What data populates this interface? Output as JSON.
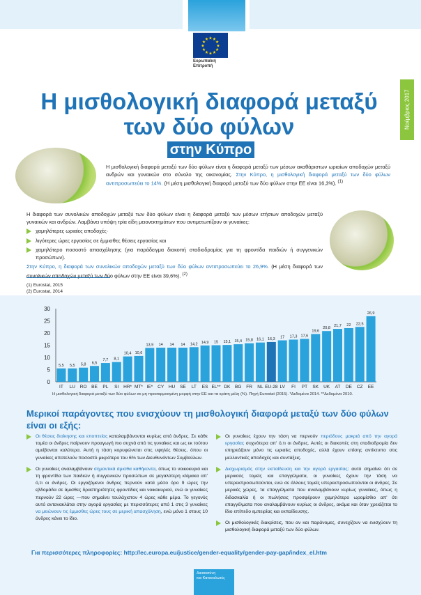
{
  "header": {
    "logo_line1": "Ευρωπαϊκή",
    "logo_line2": "Επιτροπή",
    "date_tab": "Νοέμβριος 2017"
  },
  "title": "Η μισθολογική διαφορά μεταξύ των δύο φύλων",
  "subtitle": "στην Κύπρο",
  "intro": {
    "text": "Η μισθολογική διαφορά μεταξύ των δύο φύλων είναι η διαφορά μεταξύ των μέσων ακαθάριστων ωριαίων αποδοχών μεταξύ ανδρών και γυναικών στο σύνολο της οικονομίας. ",
    "highlight": "Στην Κύπρο, η μισθολογική διαφορά μεταξύ των δύο φύλων αντιπροσωπεύει το 14%.",
    "tail": " (Η μέση μισθολογική διαφορά μεταξύ των δύο φύλων στην ΕΕ είναι 16,3%).",
    "ref": "(1)"
  },
  "total": {
    "text": "Η διαφορά των συνολικών αποδοχών μεταξύ των δύο φύλων είναι η διαφορά μεταξύ των μέσων ετήσιων αποδοχών μεταξύ γυναικών και ανδρών. Λαμβάνει υπόψη τρία είδη μειονεκτημάτων που αντιμετωπίζουν οι γυναίκες:",
    "bullets": [
      "χαμηλότερες ωριαίες αποδοχές·",
      "λιγότερες ώρες εργασίας σε έμμισθες θέσεις εργασίας και",
      "χαμηλότερο ποσοστό απασχόλησης (για παράδειγμα διακοπή σταδιοδρομίας για τη φροντίδα παιδιών ή συγγενικών προσώπων)."
    ],
    "highlight": "Στην Κύπρο, η διαφορά των συνολικών αποδοχών μεταξύ των δύο φύλων αντιπροσωπεύει το 26,9%.",
    "tail": " (Η μέση διαφορά των συνολικών αποδοχών μεταξύ των δύο φύλων στην ΕΕ είναι 39,6%).",
    "ref": "(2)"
  },
  "footnotes": [
    "(1)  Eurostat, 2015",
    "(2)  Eurostat, 2014"
  ],
  "chart_data": {
    "type": "bar",
    "categories": [
      "IT",
      "LU",
      "RO",
      "BE",
      "PL",
      "SI",
      "HR*",
      "MT*",
      "IE*",
      "CY",
      "HU",
      "SE",
      "LT",
      "ES",
      "EL**",
      "DK",
      "BG",
      "FR",
      "NL",
      "EU-28",
      "LV",
      "FI",
      "PT",
      "SK",
      "UK",
      "AT",
      "DE",
      "CZ",
      "EE"
    ],
    "values": [
      5.5,
      5.5,
      5.8,
      6.5,
      7.7,
      8.1,
      10.4,
      10.6,
      13.9,
      14,
      14,
      14,
      14.2,
      14.9,
      15,
      15.1,
      15.4,
      15.8,
      16.1,
      16.3,
      17,
      17.3,
      17.6,
      19.6,
      20.8,
      21.7,
      22,
      22.5,
      26.9
    ],
    "labels": [
      "5,5",
      "5,5",
      "5,8",
      "6,5",
      "7,7",
      "8,1",
      "10,4",
      "10,6",
      "13,9",
      "14",
      "14",
      "14",
      "14,2",
      "14,9",
      "15",
      "15,1",
      "15,4",
      "15,8",
      "16,1",
      "16,3",
      "17",
      "17,3",
      "17,6",
      "19,6",
      "20,8",
      "21,7",
      "22",
      "22,5",
      "26,9"
    ],
    "ylim": [
      0,
      30
    ],
    "yticks": [
      "0",
      "5",
      "10",
      "15",
      "20",
      "25",
      "30"
    ],
    "highlight_category": "EU-28",
    "bar_color": "#2aa2dc",
    "highlight_color": "#1f73b7",
    "caption": "Η μισθολογική διαφορά μεταξύ των δύο φύλων σε μη προσαρμοσμένη μορφή στην ΕΕ και τα κράτη μέλη (%). Πηγή Eurostat (2015). *Δεδομένα 2014. **Δεδομένα 2010."
  },
  "factors": {
    "heading": "Μερικοί παράγοντες που ενισχύουν τη μισθολογική διαφορά μεταξύ των δύο φύλων είναι οι εξής:",
    "items": [
      {
        "link": "Οι θέσεις διοίκησης και εποπτείας",
        "text": " καταλαμβάνονται κυρίως από άνδρες. Σε κάθε τομέα οι άνδρες παίρνουν προαγωγή πιο συχνά από τις γυναίκες και ως εκ τούτου αμείβονται καλύτερα. Αυτή η τάση κορυφώνεται στις υψηλές θέσεις, όπου οι γυναίκες αποτελούν ποσοστό μικρότερο του 6% των Διευθυνόντων Συμβούλων."
      },
      {
        "pre": "Οι γυναίκες αναλαμβάνουν ",
        "link": "σημαντικά άμισθα καθήκοντα",
        "text": ", όπως το νοικοκυριό και τη φροντίδα των παιδιών ή συγγενικών προσώπων σε μεγαλύτερη κλίμακα απ' ό,τι οι άνδρες. Οι εργαζόμενοι άνδρες περνούν κατά μέσο όρο 9 ώρες την εβδομάδα σε άμισθες δραστηριότητες φροντίδας και νοικοκυριού, ενώ οι γυναίκες περνούν 22 ώρες —που σημαίνει τουλάχιστον 4 ώρες κάθε μέρα. Το γεγονός αυτό αντανακλάται στην αγορά εργασίας με περισσότερες από 1 στις 3 γυναίκες ",
        "link2": "να μειώνουν τις έμμισθες ώρες τους σε μερική απασχόληση",
        "text2": ", ενώ μόνο 1 στους 10 άνδρες κάνει το ίδιο."
      },
      {
        "pre": "Οι γυναίκες έχουν την τάση να περνούν ",
        "link": "περιόδους μακριά από την αγορά εργασίας",
        "text": " συχνότερα απ' ό,τι οι άνδρες. Αυτές οι διακοπές στη σταδιοδρομία δεν επηρεάζουν μόνο τις ωριαίες αποδοχές, αλλά έχουν επίσης αντίκτυπο στις μελλοντικές αποδοχές και συντάξεις."
      },
      {
        "link": "Διαχωρισμός στην εκπαίδευση και την αγορά εργασίας",
        "text": ": αυτό σημαίνει ότι σε μερικούς τομείς και επαγγέλματα, οι γυναίκες έχουν την τάση να υπερεκπροσωπούνται, ενώ σε άλλους τομείς υπερεκπροσωπούνται οι άνδρες. Σε μερικές χώρες, τα επαγγέλματα που αναλαμβάνουν κυρίως γυναίκες, όπως η διδασκαλία ή οι πωλήσεις προσφέρουν χαμηλότερο ωρομίσθιο απ' ότι επαγγέλματα που αναλαμβάνουν κυρίως οι άνδρες, ακόμα και όταν χρειάζεται το ίδιο επίπεδο εμπειρίας και εκπαίδευσης."
      },
      {
        "text": "Οι μισθολογικές διακρίσεις, που αν και παράνομες, συνεχίζουν να ενισχύουν τη μισθολογική διαφορά μεταξύ των δύο φύλων."
      }
    ]
  },
  "more_info": "Για περισσότερες πληροφορίες: http://ec.europa.eu/justice/gender-equality/gender-pay-gap/index_el.htm",
  "dg": {
    "line1": "Δικαιοσύνη",
    "line2": "και Καταναλωτές"
  }
}
